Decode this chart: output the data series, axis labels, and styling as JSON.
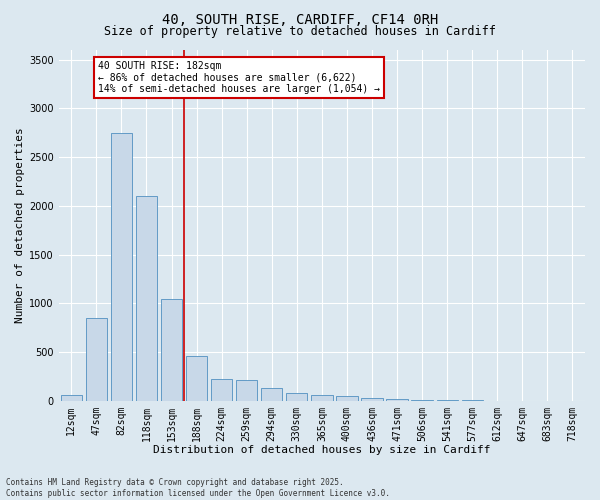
{
  "title_line1": "40, SOUTH RISE, CARDIFF, CF14 0RH",
  "title_line2": "Size of property relative to detached houses in Cardiff",
  "xlabel": "Distribution of detached houses by size in Cardiff",
  "ylabel": "Number of detached properties",
  "categories": [
    "12sqm",
    "47sqm",
    "82sqm",
    "118sqm",
    "153sqm",
    "188sqm",
    "224sqm",
    "259sqm",
    "294sqm",
    "330sqm",
    "365sqm",
    "400sqm",
    "436sqm",
    "471sqm",
    "506sqm",
    "541sqm",
    "577sqm",
    "612sqm",
    "647sqm",
    "683sqm",
    "718sqm"
  ],
  "values": [
    55,
    850,
    2750,
    2100,
    1040,
    460,
    225,
    215,
    135,
    75,
    55,
    50,
    30,
    20,
    10,
    5,
    3,
    2,
    1,
    1,
    0
  ],
  "bar_color": "#c8d8e8",
  "bar_edge_color": "#5090c0",
  "vline_index": 4.5,
  "vline_color": "#cc0000",
  "annotation_text": "40 SOUTH RISE: 182sqm\n← 86% of detached houses are smaller (6,622)\n14% of semi-detached houses are larger (1,054) →",
  "annotation_box_color": "#cc0000",
  "annotation_fill": "#ffffff",
  "ylim": [
    0,
    3600
  ],
  "yticks": [
    0,
    500,
    1000,
    1500,
    2000,
    2500,
    3000,
    3500
  ],
  "footer_line1": "Contains HM Land Registry data © Crown copyright and database right 2025.",
  "footer_line2": "Contains public sector information licensed under the Open Government Licence v3.0.",
  "bg_color": "#dce8f0",
  "plot_bg_color": "#dce8f0",
  "grid_color": "#ffffff",
  "title1_fontsize": 10,
  "title2_fontsize": 8.5,
  "xlabel_fontsize": 8,
  "ylabel_fontsize": 8,
  "tick_fontsize": 7,
  "annot_fontsize": 7,
  "footer_fontsize": 5.5
}
